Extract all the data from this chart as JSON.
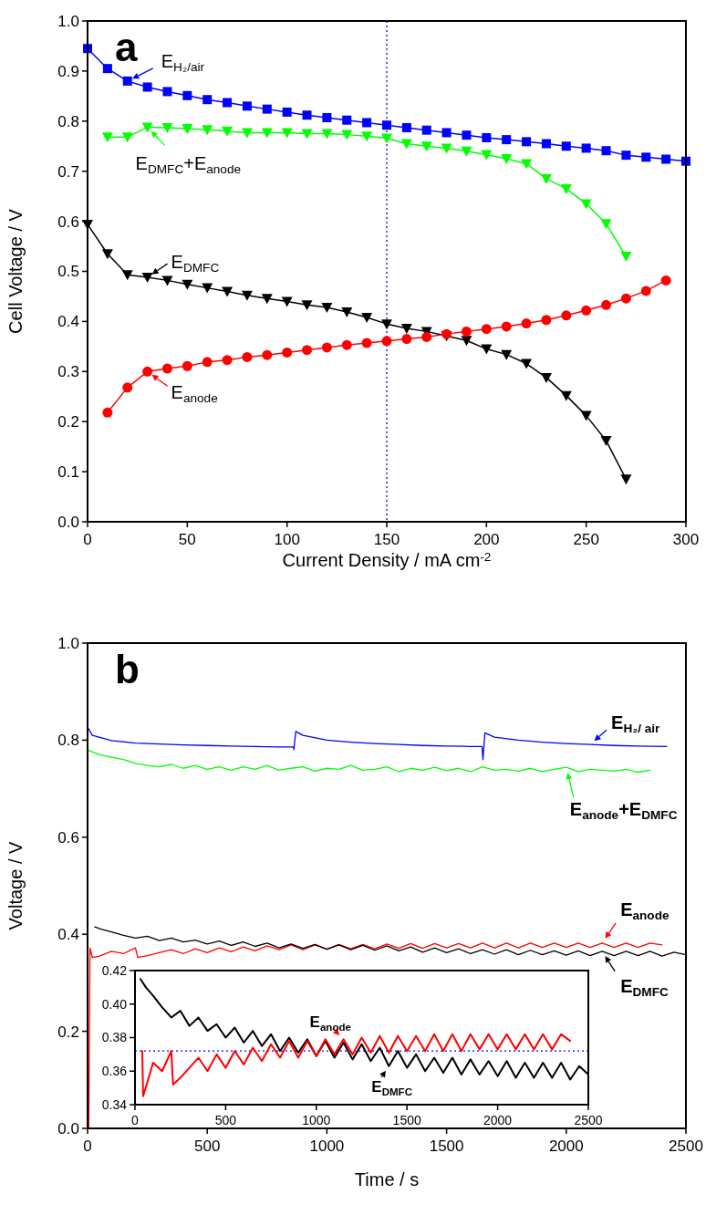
{
  "chart_data": [
    {
      "type": "line",
      "title": "a",
      "legend": "top left",
      "xlabel": "Current Density / mA cm$^{-2}$",
      "ylabel": "Cell Voltage / V",
      "xlim": [
        0,
        300
      ],
      "ylim": [
        0,
        1
      ],
      "xticks": [
        0,
        50,
        100,
        150,
        200,
        250,
        300
      ],
      "yticks": [
        {
          "value": 0,
          "label": "0.0"
        },
        0.1,
        0.2,
        0.3,
        0.4,
        0.5,
        0.6,
        0.7,
        0.8,
        0.9,
        {
          "value": 1,
          "label": "1.0"
        }
      ],
      "line_style": "solid",
      "ref_lines": [
        {
          "axis": "x",
          "value": 150,
          "color": "#0000ff",
          "line_style": "dotted"
        }
      ],
      "series": [
        {
          "name": "E$_{H₂/air}$",
          "color": "#0000ff",
          "marker": "square",
          "x": [
            0,
            10,
            20,
            30,
            40,
            50,
            60,
            70,
            80,
            90,
            100,
            110,
            120,
            130,
            140,
            150,
            160,
            170,
            180,
            190,
            200,
            210,
            220,
            230,
            240,
            250,
            260,
            270,
            280,
            290,
            300
          ],
          "values": [
            0.945,
            0.905,
            0.88,
            0.868,
            0.859,
            0.851,
            0.843,
            0.837,
            0.83,
            0.824,
            0.818,
            0.812,
            0.807,
            0.802,
            0.797,
            0.792,
            0.787,
            0.782,
            0.777,
            0.772,
            0.767,
            0.763,
            0.759,
            0.755,
            0.75,
            0.746,
            0.741,
            0.732,
            0.728,
            0.724,
            0.72
          ]
        },
        {
          "name": "E$_{DMFC}$+E$_{anode}$",
          "color": "#00ff00",
          "marker": "triangle",
          "x": [
            10,
            20,
            30,
            40,
            50,
            60,
            70,
            80,
            90,
            100,
            110,
            120,
            130,
            140,
            150,
            160,
            170,
            180,
            190,
            200,
            210,
            220,
            230,
            240,
            250,
            260,
            270
          ],
          "values": [
            0.768,
            0.768,
            0.788,
            0.787,
            0.785,
            0.783,
            0.78,
            0.777,
            0.777,
            0.777,
            0.775,
            0.775,
            0.773,
            0.77,
            0.766,
            0.755,
            0.75,
            0.746,
            0.74,
            0.733,
            0.725,
            0.715,
            0.685,
            0.665,
            0.635,
            0.595,
            0.53
          ]
        },
        {
          "name": "E$_{DMFC}$",
          "color": "#000000",
          "marker": "triangle",
          "x": [
            0,
            10,
            20,
            30,
            40,
            50,
            60,
            70,
            80,
            90,
            100,
            110,
            120,
            130,
            140,
            150,
            160,
            170,
            180,
            190,
            200,
            210,
            220,
            230,
            240,
            250,
            260,
            270
          ],
          "values": [
            0.594,
            0.535,
            0.493,
            0.488,
            0.482,
            0.474,
            0.467,
            0.46,
            0.452,
            0.446,
            0.44,
            0.433,
            0.428,
            0.419,
            0.408,
            0.395,
            0.386,
            0.38,
            0.371,
            0.362,
            0.345,
            0.334,
            0.316,
            0.288,
            0.252,
            0.212,
            0.162,
            0.085
          ]
        },
        {
          "name": "E$_{anode}$",
          "color": "#ff0000",
          "marker": "circle",
          "x": [
            10,
            20,
            30,
            40,
            50,
            60,
            70,
            80,
            90,
            100,
            110,
            120,
            130,
            140,
            150,
            160,
            170,
            180,
            190,
            200,
            210,
            220,
            230,
            240,
            250,
            260,
            270,
            280,
            290
          ],
          "values": [
            0.218,
            0.268,
            0.3,
            0.306,
            0.311,
            0.319,
            0.323,
            0.329,
            0.333,
            0.338,
            0.343,
            0.348,
            0.353,
            0.357,
            0.361,
            0.365,
            0.369,
            0.375,
            0.38,
            0.385,
            0.39,
            0.396,
            0.403,
            0.412,
            0.422,
            0.433,
            0.446,
            0.461,
            0.482
          ]
        }
      ]
    },
    {
      "type": "line",
      "title": "b",
      "legend": "right",
      "xlabel": "Time / s",
      "ylabel": "Voltage / V",
      "xlim": [
        0,
        2500
      ],
      "ylim": [
        0,
        1
      ],
      "xticks": [
        0,
        500,
        1000,
        1500,
        2000,
        2500
      ],
      "yticks": [
        {
          "value": 0,
          "label": "0.0"
        },
        0.2,
        0.4,
        0.6,
        0.8,
        {
          "value": 1,
          "label": "1.0"
        }
      ],
      "line_style": "solid",
      "series": [
        {
          "name": "E$_{H₂/ air}$",
          "color": "#0000ff",
          "marker": "none",
          "x": [
            0,
            20,
            100,
            200,
            300,
            400,
            500,
            600,
            700,
            800,
            860,
            862,
            870,
            900,
            1000,
            1100,
            1200,
            1300,
            1400,
            1500,
            1600,
            1648,
            1652,
            1660,
            1700,
            1800,
            1900,
            2000,
            2100,
            2200,
            2300,
            2420
          ],
          "values": [
            0.827,
            0.81,
            0.799,
            0.794,
            0.792,
            0.79,
            0.789,
            0.788,
            0.787,
            0.786,
            0.786,
            0.781,
            0.818,
            0.81,
            0.8,
            0.796,
            0.793,
            0.791,
            0.789,
            0.788,
            0.787,
            0.787,
            0.76,
            0.815,
            0.806,
            0.8,
            0.796,
            0.793,
            0.791,
            0.789,
            0.788,
            0.787
          ]
        },
        {
          "name": "E$_{anode}$+E$_{DMFC}$",
          "color": "#00ff00",
          "marker": "none",
          "x": [
            0,
            50,
            100,
            150,
            200,
            250,
            300,
            350,
            400,
            450,
            500,
            550,
            600,
            650,
            700,
            750,
            800,
            850,
            900,
            950,
            1000,
            1050,
            1100,
            1150,
            1200,
            1250,
            1300,
            1350,
            1400,
            1450,
            1500,
            1550,
            1600,
            1650,
            1700,
            1750,
            1800,
            1850,
            1900,
            1950,
            2000,
            2050,
            2100,
            2150,
            2200,
            2250,
            2300,
            2350
          ],
          "values": [
            0.78,
            0.77,
            0.765,
            0.76,
            0.752,
            0.748,
            0.745,
            0.75,
            0.742,
            0.748,
            0.74,
            0.745,
            0.738,
            0.745,
            0.74,
            0.748,
            0.738,
            0.742,
            0.745,
            0.736,
            0.742,
            0.74,
            0.748,
            0.738,
            0.74,
            0.745,
            0.735,
            0.742,
            0.738,
            0.744,
            0.737,
            0.742,
            0.735,
            0.745,
            0.738,
            0.74,
            0.736,
            0.742,
            0.735,
            0.74,
            0.744,
            0.735,
            0.74,
            0.738,
            0.736,
            0.74,
            0.734,
            0.738
          ]
        },
        {
          "name": "E$_{anode}$",
          "color": "#ff0000",
          "marker": "none",
          "x": [
            5,
            10,
            20,
            50,
            100,
            150,
            200,
            210,
            250,
            300,
            350,
            400,
            450,
            500,
            550,
            600,
            650,
            700,
            750,
            800,
            850,
            900,
            950,
            1000,
            1050,
            1100,
            1150,
            1200,
            1250,
            1300,
            1350,
            1400,
            1450,
            1500,
            1550,
            1600,
            1650,
            1700,
            1750,
            1800,
            1850,
            1900,
            1950,
            2000,
            2050,
            2100,
            2150,
            2200,
            2250,
            2300,
            2350,
            2400
          ],
          "values": [
            0,
            0.372,
            0.352,
            0.355,
            0.365,
            0.36,
            0.372,
            0.352,
            0.356,
            0.362,
            0.368,
            0.36,
            0.37,
            0.362,
            0.372,
            0.364,
            0.374,
            0.366,
            0.376,
            0.368,
            0.378,
            0.368,
            0.378,
            0.369,
            0.379,
            0.37,
            0.379,
            0.37,
            0.38,
            0.371,
            0.381,
            0.371,
            0.381,
            0.372,
            0.381,
            0.372,
            0.382,
            0.372,
            0.382,
            0.372,
            0.382,
            0.373,
            0.382,
            0.373,
            0.382,
            0.373,
            0.382,
            0.373,
            0.382,
            0.373,
            0.382,
            0.378
          ]
        },
        {
          "name": "E$_{DMFC}$",
          "color": "#000000",
          "marker": "none",
          "x": [
            30,
            60,
            100,
            150,
            200,
            250,
            300,
            350,
            400,
            450,
            500,
            550,
            600,
            650,
            700,
            750,
            800,
            850,
            900,
            950,
            1000,
            1050,
            1100,
            1150,
            1200,
            1250,
            1300,
            1350,
            1400,
            1450,
            1500,
            1550,
            1600,
            1650,
            1700,
            1750,
            1800,
            1850,
            1900,
            1950,
            2000,
            2050,
            2100,
            2150,
            2200,
            2250,
            2300,
            2350,
            2400,
            2450,
            2500
          ],
          "values": [
            0.415,
            0.41,
            0.405,
            0.398,
            0.392,
            0.396,
            0.387,
            0.392,
            0.384,
            0.388,
            0.38,
            0.386,
            0.377,
            0.384,
            0.375,
            0.382,
            0.372,
            0.38,
            0.371,
            0.379,
            0.369,
            0.378,
            0.368,
            0.377,
            0.367,
            0.376,
            0.366,
            0.374,
            0.363,
            0.372,
            0.362,
            0.37,
            0.36,
            0.368,
            0.359,
            0.368,
            0.358,
            0.367,
            0.358,
            0.366,
            0.357,
            0.366,
            0.356,
            0.365,
            0.356,
            0.365,
            0.356,
            0.365,
            0.355,
            0.363,
            0.358
          ]
        }
      ]
    },
    {
      "type": "line",
      "xlim": [
        0,
        2500
      ],
      "ylim": [
        0.34,
        0.42
      ],
      "xticks": [
        0,
        500,
        1000,
        1500,
        2000,
        2500
      ],
      "yticks": [
        0.34,
        0.36,
        0.38,
        {
          "value": 0.4,
          "label": "0.40"
        },
        0.42
      ],
      "line_style": "solid",
      "ref_lines": [
        {
          "axis": "y",
          "value": 0.372,
          "color": "#0000ff",
          "line_style": "dotted"
        }
      ],
      "series": [
        {
          "name": "E$_{DMFC}$",
          "color": "#000000",
          "marker": "none",
          "x": [
            30,
            60,
            100,
            150,
            200,
            250,
            300,
            350,
            400,
            450,
            500,
            550,
            600,
            650,
            700,
            750,
            800,
            850,
            900,
            950,
            1000,
            1050,
            1100,
            1150,
            1200,
            1250,
            1300,
            1350,
            1400,
            1450,
            1500,
            1550,
            1600,
            1650,
            1700,
            1750,
            1800,
            1850,
            1900,
            1950,
            2000,
            2050,
            2100,
            2150,
            2200,
            2250,
            2300,
            2350,
            2400,
            2450,
            2500
          ],
          "values": [
            0.415,
            0.41,
            0.405,
            0.398,
            0.392,
            0.396,
            0.387,
            0.392,
            0.384,
            0.388,
            0.38,
            0.386,
            0.377,
            0.384,
            0.375,
            0.382,
            0.372,
            0.38,
            0.371,
            0.379,
            0.369,
            0.378,
            0.368,
            0.377,
            0.367,
            0.376,
            0.366,
            0.374,
            0.363,
            0.372,
            0.362,
            0.37,
            0.36,
            0.368,
            0.359,
            0.368,
            0.358,
            0.367,
            0.358,
            0.366,
            0.357,
            0.366,
            0.356,
            0.365,
            0.356,
            0.365,
            0.356,
            0.365,
            0.355,
            0.363,
            0.358
          ]
        },
        {
          "name": "E$_{anode}$",
          "color": "#ff0000",
          "marker": "none",
          "x": [
            40,
            45,
            100,
            150,
            200,
            210,
            250,
            300,
            350,
            400,
            450,
            500,
            550,
            600,
            650,
            700,
            750,
            800,
            850,
            900,
            950,
            1000,
            1050,
            1100,
            1150,
            1200,
            1250,
            1300,
            1350,
            1400,
            1450,
            1500,
            1550,
            1600,
            1650,
            1700,
            1750,
            1800,
            1850,
            1900,
            1950,
            2000,
            2050,
            2100,
            2150,
            2200,
            2250,
            2300,
            2350,
            2400
          ],
          "values": [
            0.372,
            0.345,
            0.365,
            0.36,
            0.372,
            0.352,
            0.356,
            0.362,
            0.368,
            0.36,
            0.37,
            0.362,
            0.372,
            0.364,
            0.374,
            0.366,
            0.376,
            0.368,
            0.378,
            0.368,
            0.378,
            0.369,
            0.379,
            0.37,
            0.379,
            0.37,
            0.38,
            0.371,
            0.381,
            0.371,
            0.381,
            0.372,
            0.381,
            0.372,
            0.382,
            0.372,
            0.382,
            0.372,
            0.382,
            0.373,
            0.382,
            0.373,
            0.382,
            0.373,
            0.382,
            0.373,
            0.382,
            0.373,
            0.382,
            0.378
          ]
        }
      ]
    }
  ]
}
